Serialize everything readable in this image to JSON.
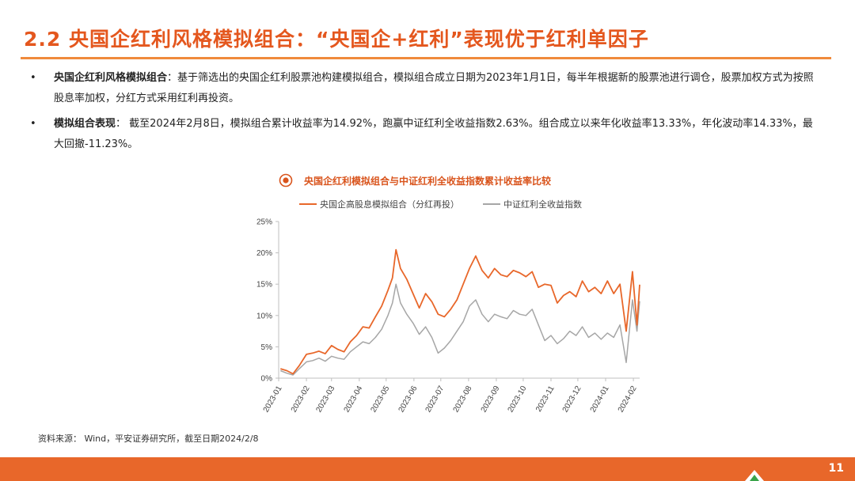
{
  "slide": {
    "title": "2.2 央国企红利风格模拟组合：“央国企+红利”表现优于红利单因子",
    "page_number": "11",
    "source": "资料来源： Wind，平安证券研究所，截至日期2024/2/8"
  },
  "bullets": [
    {
      "lead": "央国企红利风格模拟组合",
      "text": "：基于筛选出的央国企红利股票池构建模拟组合，模拟组合成立日期为2023年1月1日，每半年根据新的股票池进行调仓，股票加权方式为按照股息率加权，分红方式采用红利再投资。"
    },
    {
      "lead": "模拟组合表现",
      "text": "： 截至2024年2月8日，模拟组合累计收益率为14.92%，跑赢中证红利全收益指数2.63%。组合成立以来年化收益率13.33%，年化波动率14.33%，最大回撤-11.23%。"
    }
  ],
  "colors": {
    "accent": "#e4571e",
    "series_portfolio": "#e8672a",
    "series_index": "#a6a6a6",
    "footer": "#e8672a"
  },
  "chart_data": {
    "type": "line",
    "title": "央国企红利模拟组合与中证红利全收益指数累计收益率比较",
    "x": [
      "2023-01",
      "2023-02",
      "2023-03",
      "2023-04",
      "2023-05",
      "2023-06",
      "2023-07",
      "2023-08",
      "2023-09",
      "2023-10",
      "2023-11",
      "2023-12",
      "2024-01",
      "2024-02"
    ],
    "x_end": "2024-02-08",
    "ylim": [
      0,
      25
    ],
    "yticks": [
      "0%",
      "5%",
      "10%",
      "15%",
      "20%",
      "25%"
    ],
    "grid": false,
    "legend_position": "top",
    "series": [
      {
        "name": "央国企高股息模拟组合（分红再投）",
        "points": [
          [
            "2023-01-03",
            1.5
          ],
          [
            "2023-01-10",
            1.2
          ],
          [
            "2023-01-17",
            0.7
          ],
          [
            "2023-01-24",
            2.0
          ],
          [
            "2023-02-01",
            3.8
          ],
          [
            "2023-02-08",
            4.0
          ],
          [
            "2023-02-15",
            4.3
          ],
          [
            "2023-02-22",
            3.9
          ],
          [
            "2023-03-01",
            5.2
          ],
          [
            "2023-03-08",
            4.6
          ],
          [
            "2023-03-15",
            4.2
          ],
          [
            "2023-03-22",
            5.8
          ],
          [
            "2023-03-29",
            6.8
          ],
          [
            "2023-04-05",
            8.2
          ],
          [
            "2023-04-12",
            8.0
          ],
          [
            "2023-04-19",
            9.8
          ],
          [
            "2023-04-26",
            11.5
          ],
          [
            "2023-05-03",
            14.0
          ],
          [
            "2023-05-08",
            16.0
          ],
          [
            "2023-05-12",
            20.5
          ],
          [
            "2023-05-17",
            17.5
          ],
          [
            "2023-05-24",
            15.8
          ],
          [
            "2023-05-31",
            13.5
          ],
          [
            "2023-06-07",
            11.2
          ],
          [
            "2023-06-14",
            13.5
          ],
          [
            "2023-06-21",
            12.2
          ],
          [
            "2023-06-28",
            10.2
          ],
          [
            "2023-07-05",
            9.8
          ],
          [
            "2023-07-12",
            11.0
          ],
          [
            "2023-07-19",
            12.5
          ],
          [
            "2023-07-26",
            15.0
          ],
          [
            "2023-08-02",
            17.5
          ],
          [
            "2023-08-09",
            19.5
          ],
          [
            "2023-08-16",
            17.2
          ],
          [
            "2023-08-23",
            16.0
          ],
          [
            "2023-08-30",
            17.5
          ],
          [
            "2023-09-06",
            16.5
          ],
          [
            "2023-09-13",
            16.2
          ],
          [
            "2023-09-20",
            17.2
          ],
          [
            "2023-09-27",
            16.8
          ],
          [
            "2023-10-04",
            16.2
          ],
          [
            "2023-10-11",
            17.0
          ],
          [
            "2023-10-18",
            14.5
          ],
          [
            "2023-10-25",
            15.0
          ],
          [
            "2023-11-01",
            14.8
          ],
          [
            "2023-11-08",
            12.0
          ],
          [
            "2023-11-15",
            13.2
          ],
          [
            "2023-11-22",
            13.8
          ],
          [
            "2023-11-29",
            13.0
          ],
          [
            "2023-12-06",
            15.5
          ],
          [
            "2023-12-13",
            13.8
          ],
          [
            "2023-12-20",
            14.5
          ],
          [
            "2023-12-27",
            13.5
          ],
          [
            "2024-01-03",
            15.5
          ],
          [
            "2024-01-10",
            13.5
          ],
          [
            "2024-01-17",
            15.0
          ],
          [
            "2024-01-24",
            7.5
          ],
          [
            "2024-01-31",
            17.0
          ],
          [
            "2024-02-05",
            8.5
          ],
          [
            "2024-02-08",
            14.92
          ]
        ]
      },
      {
        "name": "中证红利全收益指数",
        "points": [
          [
            "2023-01-03",
            1.2
          ],
          [
            "2023-01-10",
            0.8
          ],
          [
            "2023-01-17",
            0.5
          ],
          [
            "2023-01-24",
            1.5
          ],
          [
            "2023-02-01",
            2.6
          ],
          [
            "2023-02-08",
            2.8
          ],
          [
            "2023-02-15",
            3.2
          ],
          [
            "2023-02-22",
            2.7
          ],
          [
            "2023-03-01",
            3.5
          ],
          [
            "2023-03-08",
            3.2
          ],
          [
            "2023-03-15",
            3.0
          ],
          [
            "2023-03-22",
            4.2
          ],
          [
            "2023-03-29",
            5.0
          ],
          [
            "2023-04-05",
            5.8
          ],
          [
            "2023-04-12",
            5.5
          ],
          [
            "2023-04-19",
            6.5
          ],
          [
            "2023-04-26",
            7.8
          ],
          [
            "2023-05-03",
            10.0
          ],
          [
            "2023-05-08",
            12.0
          ],
          [
            "2023-05-12",
            15.0
          ],
          [
            "2023-05-17",
            12.0
          ],
          [
            "2023-05-24",
            10.2
          ],
          [
            "2023-05-31",
            8.8
          ],
          [
            "2023-06-07",
            7.0
          ],
          [
            "2023-06-14",
            8.2
          ],
          [
            "2023-06-21",
            6.5
          ],
          [
            "2023-06-28",
            4.0
          ],
          [
            "2023-07-05",
            4.8
          ],
          [
            "2023-07-12",
            6.0
          ],
          [
            "2023-07-19",
            7.5
          ],
          [
            "2023-07-26",
            9.0
          ],
          [
            "2023-08-02",
            11.5
          ],
          [
            "2023-08-09",
            12.5
          ],
          [
            "2023-08-16",
            10.2
          ],
          [
            "2023-08-23",
            9.0
          ],
          [
            "2023-08-30",
            10.2
          ],
          [
            "2023-09-06",
            9.8
          ],
          [
            "2023-09-13",
            9.5
          ],
          [
            "2023-09-20",
            10.8
          ],
          [
            "2023-09-27",
            10.2
          ],
          [
            "2023-10-04",
            10.0
          ],
          [
            "2023-10-11",
            11.0
          ],
          [
            "2023-10-18",
            8.5
          ],
          [
            "2023-10-25",
            6.0
          ],
          [
            "2023-11-01",
            6.8
          ],
          [
            "2023-11-08",
            5.5
          ],
          [
            "2023-11-15",
            6.3
          ],
          [
            "2023-11-22",
            7.5
          ],
          [
            "2023-11-29",
            6.8
          ],
          [
            "2023-12-06",
            8.2
          ],
          [
            "2023-12-13",
            6.5
          ],
          [
            "2023-12-20",
            7.2
          ],
          [
            "2023-12-27",
            6.2
          ],
          [
            "2024-01-03",
            7.2
          ],
          [
            "2024-01-10",
            6.5
          ],
          [
            "2024-01-17",
            8.5
          ],
          [
            "2024-01-24",
            2.5
          ],
          [
            "2024-01-31",
            12.5
          ],
          [
            "2024-02-05",
            7.5
          ],
          [
            "2024-02-08",
            12.29
          ]
        ]
      }
    ]
  }
}
